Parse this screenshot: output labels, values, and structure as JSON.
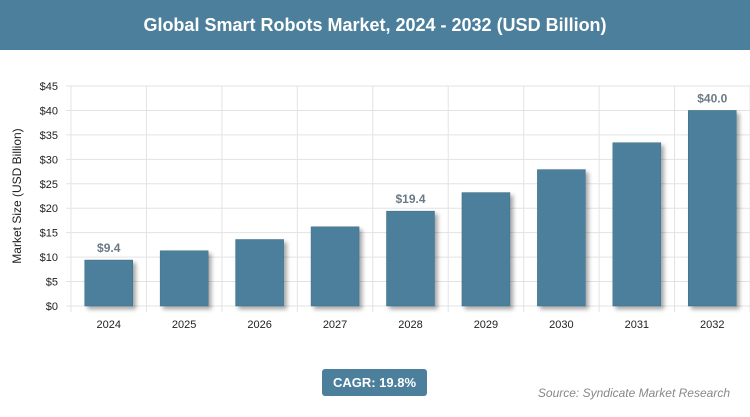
{
  "header": {
    "title": "Global Smart Robots Market, 2024 - 2032 (USD Billion)"
  },
  "chart_data": {
    "type": "bar",
    "title": "Global Smart Robots Market, 2024 - 2032 (USD Billion)",
    "categories": [
      "2024",
      "2025",
      "2026",
      "2027",
      "2028",
      "2029",
      "2030",
      "2031",
      "2032"
    ],
    "values": [
      9.4,
      11.3,
      13.6,
      16.2,
      19.4,
      23.2,
      27.9,
      33.4,
      40.0
    ],
    "data_labels": {
      "0": "$9.4",
      "4": "$19.4",
      "8": "$40.0"
    },
    "xlabel": "",
    "ylabel": "Market Size (USD Billion)",
    "ylim": [
      0,
      45
    ],
    "yticks": [
      "$0",
      "$5",
      "$10",
      "$15",
      "$20",
      "$25",
      "$30",
      "$35",
      "$40",
      "$45"
    ],
    "grid": true,
    "bar_color": "#4b7f9b"
  },
  "footer": {
    "cagr": "CAGR: 19.8%",
    "source": "Source: Syndicate Market Research"
  }
}
